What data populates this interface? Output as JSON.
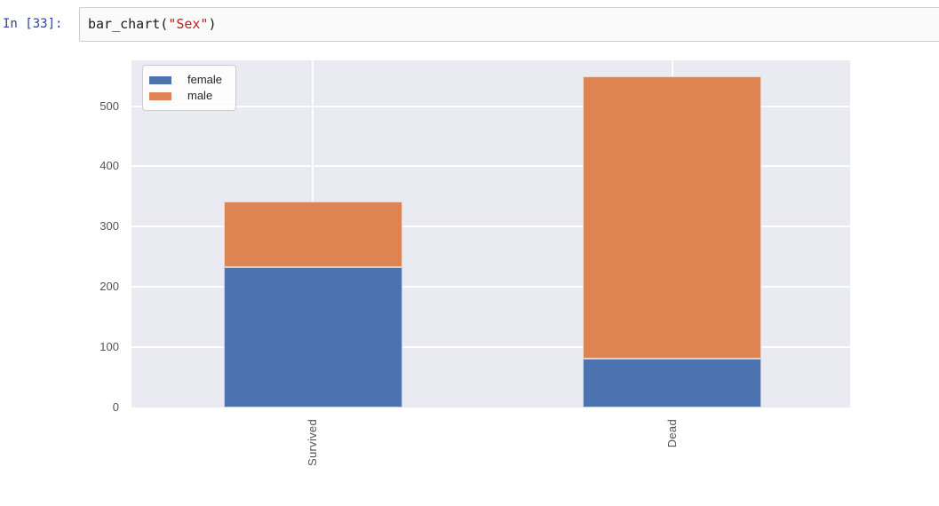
{
  "cell": {
    "prompt": "In [33]:",
    "code": {
      "func": "bar_chart(",
      "arg": "\"Sex\"",
      "close": ")"
    }
  },
  "chart_data": {
    "type": "bar",
    "stacked": true,
    "categories": [
      "Survived",
      "Dead"
    ],
    "series": [
      {
        "name": "female",
        "color": "#4C72B0",
        "values": [
          233,
          81
        ]
      },
      {
        "name": "male",
        "color": "#DD8452",
        "values": [
          109,
          468
        ]
      }
    ],
    "title": "",
    "xlabel": "",
    "ylabel": "",
    "y_ticks": [
      0,
      100,
      200,
      300,
      400,
      500
    ],
    "ylim": [
      0,
      576
    ],
    "grid": true,
    "legend_position": "upper left",
    "plot_background": "#EAEAF2",
    "grid_color": "#ffffff",
    "tick_color": "#555555"
  }
}
